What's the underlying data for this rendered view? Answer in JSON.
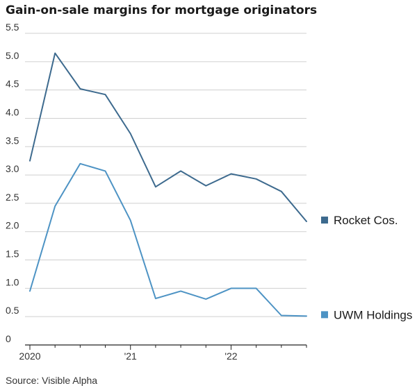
{
  "title": "Gain-on-sale margins for mortgage originators",
  "source": "Source: Visible Alpha",
  "chart_data": {
    "type": "line",
    "title": "Gain-on-sale margins for mortgage originators",
    "xlabel": "",
    "ylabel": "",
    "x": [
      "2020Q1",
      "2020Q2",
      "2020Q3",
      "2020Q4",
      "2021Q1",
      "2021Q2",
      "2021Q3",
      "2021Q4",
      "2022Q1",
      "2022Q2",
      "2022Q3",
      "2022Q4"
    ],
    "x_tick_labels": [
      "2020",
      "'21",
      "'22"
    ],
    "y_ticks": [
      "0",
      "0.5",
      "1.0",
      "1.5",
      "2.0",
      "2.5",
      "3.0",
      "3.5",
      "4.0",
      "4.5",
      "5.0",
      "5.5"
    ],
    "ylim": [
      0,
      5.5
    ],
    "grid": "horizontal",
    "legend_placement": "right, at line ends",
    "series": [
      {
        "name": "Rocket Cos.",
        "color": "#3d6a8e",
        "values": [
          3.25,
          5.15,
          4.52,
          4.42,
          3.73,
          2.79,
          3.07,
          2.81,
          3.02,
          2.93,
          2.71,
          2.18
        ]
      },
      {
        "name": "UWM Holdings",
        "color": "#4d93c4",
        "values": [
          0.95,
          2.45,
          3.2,
          3.07,
          2.2,
          0.82,
          0.95,
          0.81,
          1.0,
          1.0,
          0.52,
          0.51
        ]
      }
    ]
  }
}
